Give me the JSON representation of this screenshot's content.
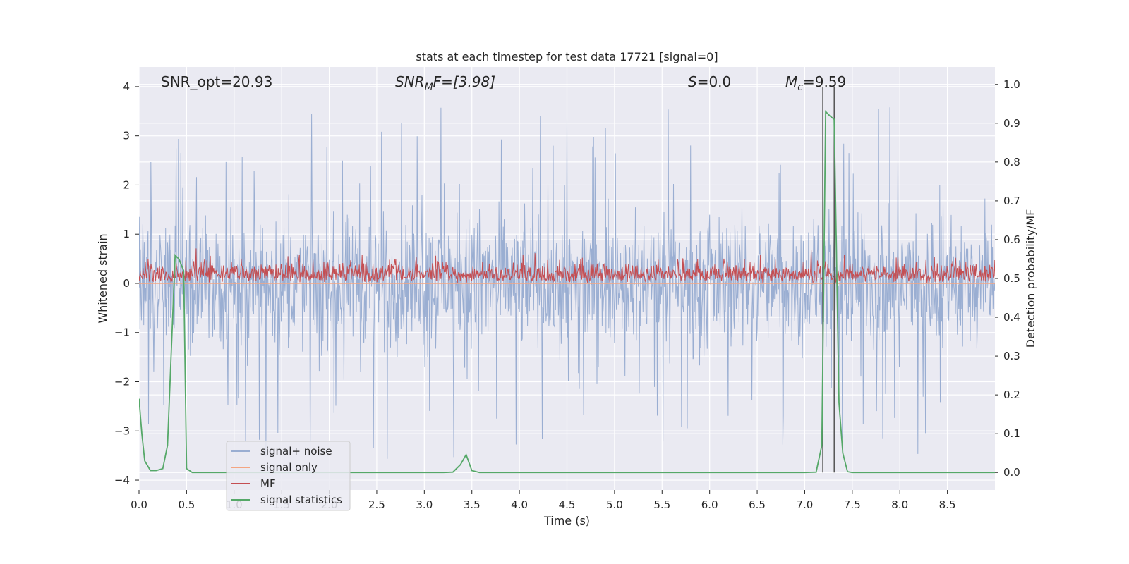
{
  "chart_data": {
    "type": "line",
    "title": "stats at each timestep for test data 17721 [signal=0]",
    "xlabel": "Time (s)",
    "ylabel": "Whitened strain",
    "ylabel_right": "Detection probability/MF",
    "xlim": [
      0.0,
      9.0
    ],
    "ylim": [
      -4.2,
      4.4
    ],
    "ylim_right": [
      -0.045,
      1.045
    ],
    "xticks": [
      "0.0",
      "0.5",
      "1.0",
      "1.5",
      "2.0",
      "2.5",
      "3.0",
      "3.5",
      "4.0",
      "4.5",
      "5.0",
      "5.5",
      "6.0",
      "6.5",
      "7.0",
      "7.5",
      "8.0",
      "8.5"
    ],
    "yticks": [
      "4",
      "3",
      "2",
      "1",
      "0",
      "−1",
      "−2",
      "−3",
      "−4"
    ],
    "yticks_right": [
      "1.0",
      "0.9",
      "0.8",
      "0.7",
      "0.6",
      "0.5",
      "0.4",
      "0.3",
      "0.2",
      "0.1",
      "0.0"
    ],
    "grid": true,
    "legend_position": "lower-left",
    "annotations": {
      "snr_opt": "SNR_opt=20.93",
      "snr_mf_base": "SNR",
      "snr_mf_sub": "M",
      "snr_mf_rest": "F=[3.98]",
      "s_base": "S",
      "s_rest": "=0.0",
      "mc_base": "M",
      "mc_sub": "c",
      "mc_rest": "=9.59"
    },
    "vlines": [
      7.19,
      7.31
    ],
    "series": [
      {
        "name": "signal+ noise",
        "color": "#9aaed2",
        "kind": "noise",
        "amplitude_range": [
          -3.6,
          3.9
        ]
      },
      {
        "name": "signal only",
        "color": "#f4a582",
        "kind": "flat",
        "value": 0.0
      },
      {
        "name": "MF",
        "color": "#c44e52",
        "kind": "mf",
        "amplitude_range": [
          0.0,
          1.0
        ]
      },
      {
        "name": "signal statistics",
        "color": "#55a868",
        "axis": "right",
        "x": [
          0.0,
          0.03,
          0.06,
          0.12,
          0.18,
          0.25,
          0.3,
          0.38,
          0.42,
          0.47,
          0.5,
          0.56,
          1.0,
          1.5,
          2.0,
          2.5,
          3.0,
          3.2,
          3.3,
          3.38,
          3.44,
          3.5,
          3.58,
          4.0,
          5.0,
          6.0,
          7.0,
          7.12,
          7.18,
          7.22,
          7.26,
          7.31,
          7.36,
          7.4,
          7.45,
          7.5,
          8.0,
          8.5,
          9.0
        ],
        "y": [
          0.19,
          0.1,
          0.03,
          0.005,
          0.005,
          0.01,
          0.07,
          0.56,
          0.55,
          0.52,
          0.01,
          0.0,
          0.0,
          0.0,
          0.0,
          0.0,
          0.0,
          0.0,
          0.001,
          0.02,
          0.046,
          0.005,
          0.0,
          0.0,
          0.0,
          0.0,
          0.0,
          0.001,
          0.07,
          0.93,
          0.92,
          0.91,
          0.18,
          0.05,
          0.002,
          0.0,
          0.0,
          0.0,
          0.0
        ]
      }
    ]
  }
}
